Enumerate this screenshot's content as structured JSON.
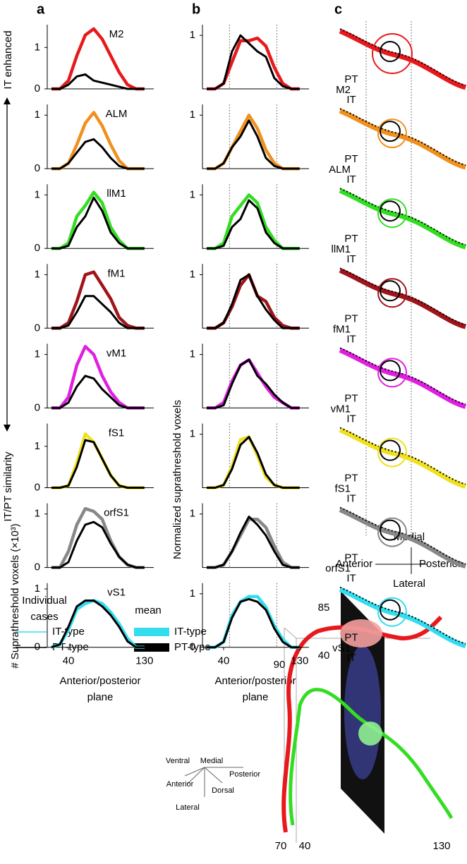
{
  "panel_letters": [
    "a",
    "b",
    "c"
  ],
  "side_top": "IT enhanced",
  "side_bottom": "IT/PT similarity",
  "a_y_label": "# Suprathreshold voxels (×10³)",
  "b_y_label": "Normalized  suprathreshold voxels",
  "x_label": [
    "Anterior/posterior",
    "plane"
  ],
  "panel_c": {
    "rows": [
      {
        "region": "M2",
        "pt": "PT",
        "it": "IT"
      },
      {
        "region": "ALM",
        "pt": "PT",
        "it": "IT"
      },
      {
        "region": "llM1",
        "pt": "PT",
        "it": "IT"
      },
      {
        "region": "fM1",
        "pt": "PT",
        "it": "IT"
      },
      {
        "region": "vM1",
        "pt": "PT",
        "it": "IT"
      },
      {
        "region": "fS1",
        "pt": "PT",
        "it": "IT"
      },
      {
        "region": "orfS1",
        "pt": "PT",
        "it": "IT"
      },
      {
        "region": "vS1",
        "pt": "PT",
        "it": "IT"
      }
    ],
    "orientation": {
      "medial": "Medial",
      "anterior": "Anterior",
      "posterior": "Posterior",
      "lateral": "Lateral"
    }
  },
  "legend": {
    "individual": [
      "Individual",
      "cases"
    ],
    "individual_it": "IT-type",
    "individual_pt": "PT-type",
    "mean": "mean",
    "mean_it": "IT-type",
    "mean_pt": "PT-type",
    "it_color": "#33ddee",
    "pt_color": "#000000"
  },
  "inset": {
    "ticks": [
      "85",
      "40",
      "90",
      "70",
      "40",
      "130"
    ],
    "orientation": [
      "Ventral",
      "Medial",
      "Posterior",
      "Anterior",
      "Dorsal",
      "Lateral"
    ]
  },
  "chart_data": [
    {
      "type": "line",
      "label": "M2",
      "x": [
        20,
        30,
        40,
        50,
        60,
        70,
        80,
        90,
        100,
        110,
        120,
        130
      ],
      "xlim": [
        15,
        141
      ],
      "ylim": [
        0,
        1.55
      ],
      "yticks": [
        0,
        1
      ],
      "series": [
        {
          "color": "#e8191c",
          "values": [
            0,
            0,
            0.2,
            0.8,
            1.3,
            1.45,
            1.2,
            0.8,
            0.4,
            0.1,
            0,
            0
          ]
        },
        {
          "color": "#000000",
          "values": [
            0,
            0,
            0.1,
            0.3,
            0.35,
            0.2,
            0.15,
            0.1,
            0.05,
            0,
            0,
            0
          ]
        }
      ]
    },
    {
      "type": "line",
      "x": [
        20,
        30,
        40,
        50,
        60,
        70,
        80,
        90,
        100,
        110,
        120,
        130
      ],
      "xlim": [
        15,
        141
      ],
      "ylim": [
        0,
        1.2
      ],
      "yticks": [
        1
      ],
      "vlines": [
        47,
        103
      ],
      "series": [
        {
          "color": "#e8191c",
          "values": [
            0,
            0,
            0.1,
            0.5,
            0.9,
            0.9,
            0.95,
            0.8,
            0.4,
            0.1,
            0,
            0
          ]
        },
        {
          "color": "#000000",
          "values": [
            0,
            0,
            0.1,
            0.7,
            1.0,
            0.85,
            0.7,
            0.6,
            0.2,
            0.05,
            0,
            0
          ]
        }
      ]
    },
    {
      "type": "line",
      "label": "ALM",
      "x": [
        20,
        30,
        40,
        50,
        60,
        70,
        80,
        90,
        100,
        110,
        120,
        130
      ],
      "xlim": [
        15,
        141
      ],
      "ylim": [
        0,
        1.2
      ],
      "yticks": [
        0,
        1
      ],
      "series": [
        {
          "color": "#f0901e",
          "values": [
            0,
            0,
            0.1,
            0.45,
            0.85,
            1.05,
            0.8,
            0.45,
            0.15,
            0,
            0,
            0
          ]
        },
        {
          "color": "#000000",
          "values": [
            0,
            0,
            0.1,
            0.3,
            0.5,
            0.55,
            0.4,
            0.2,
            0.05,
            0,
            0,
            0
          ]
        }
      ]
    },
    {
      "type": "line",
      "x": [
        20,
        30,
        40,
        50,
        60,
        70,
        80,
        90,
        100,
        110,
        120,
        130
      ],
      "xlim": [
        15,
        141
      ],
      "ylim": [
        0,
        1.2
      ],
      "yticks": [
        1
      ],
      "vlines": [
        47,
        103
      ],
      "series": [
        {
          "color": "#f0901e",
          "values": [
            0,
            0,
            0.1,
            0.4,
            0.7,
            1.0,
            0.75,
            0.35,
            0.1,
            0,
            0,
            0
          ]
        },
        {
          "color": "#000000",
          "values": [
            0,
            0,
            0.1,
            0.4,
            0.6,
            0.9,
            0.6,
            0.2,
            0.05,
            0,
            0,
            0
          ]
        }
      ]
    },
    {
      "type": "line",
      "label": "llM1",
      "x": [
        20,
        30,
        40,
        50,
        60,
        70,
        80,
        90,
        100,
        110,
        120,
        130
      ],
      "xlim": [
        15,
        141
      ],
      "ylim": [
        0,
        1.2
      ],
      "yticks": [
        0,
        1
      ],
      "series": [
        {
          "color": "#33dd22",
          "values": [
            0,
            0,
            0.1,
            0.6,
            0.8,
            1.05,
            0.85,
            0.4,
            0.15,
            0,
            0,
            0
          ]
        },
        {
          "color": "#000000",
          "values": [
            0,
            0,
            0.05,
            0.4,
            0.6,
            0.95,
            0.7,
            0.3,
            0.1,
            0,
            0,
            0
          ]
        }
      ]
    },
    {
      "type": "line",
      "x": [
        20,
        30,
        40,
        50,
        60,
        70,
        80,
        90,
        100,
        110,
        120,
        130
      ],
      "xlim": [
        15,
        141
      ],
      "ylim": [
        0,
        1.2
      ],
      "yticks": [
        1
      ],
      "vlines": [
        47,
        103
      ],
      "series": [
        {
          "color": "#33dd22",
          "values": [
            0,
            0,
            0.1,
            0.6,
            0.8,
            1.0,
            0.85,
            0.4,
            0.15,
            0,
            0,
            0
          ]
        },
        {
          "color": "#000000",
          "values": [
            0,
            0,
            0.05,
            0.4,
            0.55,
            0.9,
            0.75,
            0.3,
            0.1,
            0,
            0,
            0
          ]
        }
      ]
    },
    {
      "type": "line",
      "label": "fM1",
      "x": [
        20,
        30,
        40,
        50,
        60,
        70,
        80,
        90,
        100,
        110,
        120,
        130
      ],
      "xlim": [
        15,
        141
      ],
      "ylim": [
        0,
        1.2
      ],
      "yticks": [
        0,
        1
      ],
      "series": [
        {
          "color": "#a0141a",
          "values": [
            0,
            0,
            0.1,
            0.5,
            1.0,
            1.05,
            0.8,
            0.55,
            0.2,
            0.05,
            0,
            0
          ]
        },
        {
          "color": "#000000",
          "values": [
            0,
            0,
            0.05,
            0.3,
            0.6,
            0.6,
            0.45,
            0.3,
            0.1,
            0,
            0,
            0
          ]
        }
      ]
    },
    {
      "type": "line",
      "x": [
        20,
        30,
        40,
        50,
        60,
        70,
        80,
        90,
        100,
        110,
        120,
        130
      ],
      "xlim": [
        15,
        141
      ],
      "ylim": [
        0,
        1.2
      ],
      "yticks": [
        1
      ],
      "vlines": [
        47,
        103
      ],
      "series": [
        {
          "color": "#a0141a",
          "values": [
            0,
            0,
            0.1,
            0.4,
            0.8,
            1.0,
            0.6,
            0.5,
            0.2,
            0.05,
            0,
            0
          ]
        },
        {
          "color": "#000000",
          "values": [
            0,
            0,
            0.1,
            0.45,
            0.9,
            1.0,
            0.6,
            0.35,
            0.15,
            0,
            0,
            0
          ]
        }
      ]
    },
    {
      "type": "line",
      "label": "vM1",
      "x": [
        20,
        30,
        40,
        50,
        60,
        70,
        80,
        90,
        100,
        110,
        120,
        130
      ],
      "xlim": [
        15,
        141
      ],
      "ylim": [
        0,
        1.2
      ],
      "yticks": [
        0,
        1
      ],
      "series": [
        {
          "color": "#e020e0",
          "values": [
            0,
            0,
            0.2,
            0.8,
            1.15,
            1.0,
            0.6,
            0.3,
            0.1,
            0,
            0,
            0
          ]
        },
        {
          "color": "#000000",
          "values": [
            0,
            0,
            0.1,
            0.4,
            0.6,
            0.55,
            0.35,
            0.2,
            0.05,
            0,
            0,
            0
          ]
        }
      ]
    },
    {
      "type": "line",
      "x": [
        20,
        30,
        40,
        50,
        60,
        70,
        80,
        90,
        100,
        110,
        120,
        130
      ],
      "xlim": [
        15,
        141
      ],
      "ylim": [
        0,
        1.2
      ],
      "yticks": [
        1
      ],
      "vlines": [
        47,
        103
      ],
      "series": [
        {
          "color": "#e020e0",
          "values": [
            0,
            0,
            0.1,
            0.5,
            0.8,
            0.9,
            0.65,
            0.4,
            0.2,
            0.1,
            0,
            0
          ]
        },
        {
          "color": "#000000",
          "values": [
            0,
            0,
            0.05,
            0.45,
            0.8,
            0.9,
            0.6,
            0.45,
            0.25,
            0.1,
            0,
            0
          ]
        }
      ]
    },
    {
      "type": "line",
      "label": "fS1",
      "x": [
        20,
        30,
        40,
        50,
        60,
        70,
        80,
        90,
        100,
        110,
        120,
        130
      ],
      "xlim": [
        15,
        141
      ],
      "ylim": [
        0,
        1.55
      ],
      "yticks": [
        0,
        1
      ],
      "series": [
        {
          "color": "#f0e020",
          "values": [
            0,
            0,
            0.05,
            0.6,
            1.3,
            1.1,
            0.7,
            0.3,
            0.05,
            0,
            0,
            0
          ]
        },
        {
          "color": "#000000",
          "values": [
            0,
            0,
            0.05,
            0.5,
            1.15,
            1.1,
            0.7,
            0.3,
            0.05,
            0,
            0,
            0
          ]
        }
      ]
    },
    {
      "type": "line",
      "x": [
        20,
        30,
        40,
        50,
        60,
        70,
        80,
        90,
        100,
        110,
        120,
        130
      ],
      "xlim": [
        15,
        141
      ],
      "ylim": [
        0,
        1.2
      ],
      "yticks": [
        1
      ],
      "vlines": [
        47,
        103
      ],
      "series": [
        {
          "color": "#f0e020",
          "values": [
            0,
            0,
            0.05,
            0.4,
            0.9,
            0.95,
            0.6,
            0.2,
            0.05,
            0,
            0,
            0
          ]
        },
        {
          "color": "#000000",
          "values": [
            0,
            0,
            0.05,
            0.35,
            0.8,
            0.95,
            0.65,
            0.25,
            0.05,
            0,
            0,
            0
          ]
        }
      ]
    },
    {
      "type": "line",
      "label": "orfS1",
      "x": [
        20,
        30,
        40,
        50,
        60,
        70,
        80,
        90,
        100,
        110,
        120,
        130
      ],
      "xlim": [
        15,
        141
      ],
      "ylim": [
        0,
        1.2
      ],
      "yticks": [
        0,
        1
      ],
      "series": [
        {
          "color": "#888888",
          "values": [
            0,
            0,
            0.3,
            0.8,
            1.1,
            1.05,
            0.9,
            0.5,
            0.2,
            0.05,
            0,
            0
          ]
        },
        {
          "color": "#000000",
          "values": [
            0,
            0,
            0.1,
            0.5,
            0.8,
            0.85,
            0.75,
            0.45,
            0.2,
            0.05,
            0,
            0
          ]
        }
      ]
    },
    {
      "type": "line",
      "x": [
        20,
        30,
        40,
        50,
        60,
        70,
        80,
        90,
        100,
        110,
        120,
        130
      ],
      "xlim": [
        15,
        141
      ],
      "ylim": [
        0,
        1.2
      ],
      "yticks": [
        1
      ],
      "vlines": [
        47,
        103
      ],
      "series": [
        {
          "color": "#888888",
          "values": [
            0,
            0,
            0.05,
            0.3,
            0.6,
            0.9,
            0.9,
            0.75,
            0.4,
            0.1,
            0,
            0
          ]
        },
        {
          "color": "#000000",
          "values": [
            0,
            0,
            0.05,
            0.3,
            0.65,
            0.95,
            0.8,
            0.6,
            0.3,
            0.05,
            0,
            0
          ]
        }
      ]
    },
    {
      "type": "line",
      "label": "vS1",
      "x": [
        20,
        30,
        40,
        50,
        60,
        70,
        80,
        90,
        100,
        110,
        120,
        130
      ],
      "xlim": [
        15,
        141
      ],
      "ylim": [
        0,
        1.1
      ],
      "yticks": [
        0,
        1
      ],
      "xticks": [
        40,
        130
      ],
      "series": [
        {
          "color": "#33ddee",
          "values": [
            0,
            0.05,
            0.3,
            0.65,
            0.75,
            0.8,
            0.75,
            0.6,
            0.4,
            0.15,
            0,
            0
          ]
        },
        {
          "color": "#000000",
          "values": [
            0,
            0.05,
            0.35,
            0.7,
            0.8,
            0.8,
            0.7,
            0.55,
            0.35,
            0.1,
            0,
            0
          ]
        }
      ]
    },
    {
      "type": "line",
      "x": [
        20,
        30,
        40,
        50,
        60,
        70,
        80,
        90,
        100,
        110,
        120,
        130
      ],
      "xlim": [
        15,
        141
      ],
      "ylim": [
        0,
        1.2
      ],
      "yticks": [
        0,
        1
      ],
      "xticks": [
        40,
        130
      ],
      "vlines": [
        47,
        103
      ],
      "series": [
        {
          "color": "#33ddee",
          "values": [
            0,
            0,
            0.1,
            0.6,
            0.85,
            0.95,
            0.95,
            0.75,
            0.4,
            0.15,
            0,
            0
          ]
        },
        {
          "color": "#000000",
          "values": [
            0,
            0,
            0.1,
            0.55,
            0.85,
            0.9,
            0.85,
            0.7,
            0.35,
            0.1,
            0,
            0
          ]
        }
      ]
    }
  ]
}
